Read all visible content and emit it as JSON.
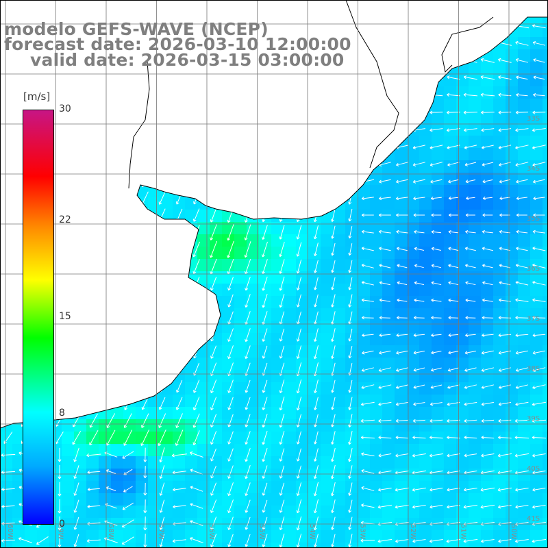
{
  "header": {
    "model_line": "modelo GEFS-WAVE (NCEP)",
    "forecast_line": "forecast date: 2026-03-10 12:00:00",
    "valid_line": "valid date: 2026-03-15 03:00:00"
  },
  "colorbar": {
    "unit": "[m/s]",
    "ticks": [
      "30",
      "22",
      "15",
      "8",
      "0"
    ],
    "tick_values": [
      30,
      22,
      15,
      8,
      0
    ],
    "colors": [
      "#0000ff",
      "#00aaff",
      "#00ffff",
      "#00ff00",
      "#ffff00",
      "#ff8800",
      "#ff0000",
      "#c71585"
    ]
  },
  "map": {
    "lat_labels": [
      "33S",
      "34S",
      "35S",
      "36S",
      "37S",
      "38S",
      "39S",
      "40S",
      "41S"
    ],
    "lon_labels": [
      "60W",
      "59W",
      "58W",
      "57W",
      "56W",
      "55W",
      "54W",
      "53W",
      "52W",
      "51W",
      "50W"
    ],
    "land_color": "#ffffff",
    "grid_color": "#777777",
    "coast_color": "#000000",
    "arrow_color": "#ffffff"
  }
}
